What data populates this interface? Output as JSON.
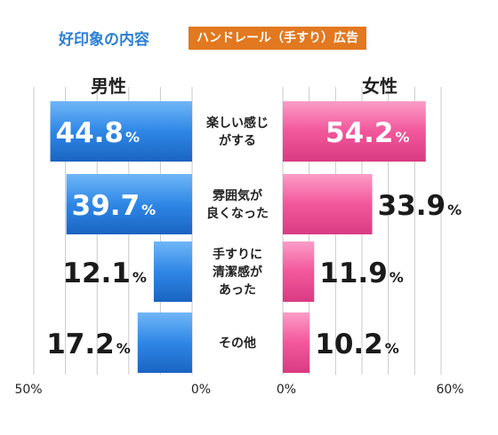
{
  "header": {
    "title": "好印象の内容",
    "badge": "ハンドレール（手すり）広告"
  },
  "colors": {
    "male_bar": "#2f87e6",
    "female_bar": "#f2579b",
    "title_text": "#2a7fd4",
    "badge_bg": "#e2781f"
  },
  "chart_data": {
    "type": "bar",
    "orientation": "horizontal-butterfly",
    "categories": [
      [
        "楽しい感じ",
        "がする"
      ],
      [
        "雰囲気が",
        "良くなった"
      ],
      [
        "手すりに",
        "清潔感が",
        "あった"
      ],
      [
        "その他"
      ]
    ],
    "series": [
      {
        "name": "男性",
        "values": [
          44.8,
          39.7,
          12.1,
          17.2
        ],
        "labels": [
          "44.8",
          "39.7",
          "12.1",
          "17.2"
        ],
        "xlim": [
          0,
          50
        ],
        "tick_labels": [
          "50%",
          "0%"
        ]
      },
      {
        "name": "女性",
        "values": [
          54.2,
          33.9,
          11.9,
          10.2
        ],
        "labels": [
          "54.2",
          "33.9",
          "11.9",
          "10.2"
        ],
        "xlim": [
          0,
          60
        ],
        "tick_labels": [
          "0%",
          "60%"
        ]
      }
    ],
    "value_suffix": "%",
    "grid": true
  }
}
